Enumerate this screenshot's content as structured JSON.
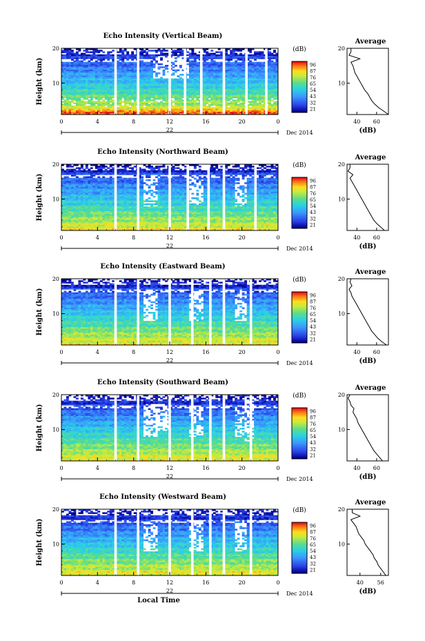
{
  "figure": {
    "xlabel": "Local Time",
    "date_label": "Dec 2014",
    "day_label": "22",
    "x_ticks": [
      "0",
      "4",
      "8",
      "12",
      "16",
      "20",
      "0"
    ],
    "y_label": "Height (km)",
    "y_ticks": [
      "20",
      "10"
    ],
    "colorbar_unit": "(dB)",
    "colorbar_ticks": [
      "96",
      "87",
      "76",
      "65",
      "54",
      "43",
      "32",
      "21"
    ],
    "avg_title": "Average",
    "avg_xlabel": "(dB)",
    "avg_x_ticks": [
      "40",
      "60"
    ],
    "avg_y_ticks": [
      "20",
      "10"
    ]
  },
  "chart_data": [
    {
      "type": "heatmap",
      "title": "Echo Intensity (Vertical Beam)",
      "xlabel": "Local Time",
      "ylabel": "Height (km)",
      "xlim": [
        0,
        24
      ],
      "ylim": [
        1,
        20
      ],
      "colorbar": {
        "label": "(dB)",
        "ticks": [
          96,
          87,
          76,
          65,
          54,
          43,
          32,
          21
        ]
      },
      "data_gaps_hours": [
        6,
        8.5,
        12,
        13.7,
        15.5,
        18,
        20.5,
        22.7
      ],
      "average_profile": {
        "title": "Average",
        "xlabel": "(dB)",
        "x_ticks": [
          40,
          60
        ],
        "xlim": [
          30,
          72
        ],
        "height": [
          1,
          2,
          3,
          4,
          5,
          6,
          7,
          8,
          9,
          10,
          11,
          12,
          13,
          14,
          15,
          16,
          17,
          18,
          19,
          20
        ],
        "db": [
          72,
          67,
          62,
          58,
          55,
          53,
          51,
          48,
          46,
          44,
          42,
          40,
          38,
          37,
          36,
          34,
          43,
          32,
          34,
          34
        ]
      }
    },
    {
      "type": "heatmap",
      "title": "Echo Intensity (Northward Beam)",
      "xlabel": "Local Time",
      "ylabel": "Height (km)",
      "xlim": [
        0,
        24
      ],
      "ylim": [
        1,
        20
      ],
      "colorbar": {
        "label": "(dB)",
        "ticks": [
          96,
          87,
          76,
          65,
          54,
          43,
          32,
          21
        ]
      },
      "data_gaps_hours": [
        6,
        8.5,
        12,
        14,
        16.3,
        18,
        21.5
      ],
      "average_profile": {
        "title": "Average",
        "xlabel": "(dB)",
        "x_ticks": [
          40,
          60
        ],
        "xlim": [
          30,
          72
        ],
        "height": [
          1,
          2,
          3,
          4,
          5,
          6,
          7,
          8,
          9,
          10,
          11,
          12,
          13,
          14,
          15,
          16,
          17,
          18,
          19,
          20
        ],
        "db": [
          68,
          64,
          60,
          57,
          55,
          53,
          51,
          49,
          47,
          45,
          43,
          41,
          39,
          37,
          35,
          33,
          36,
          31,
          33,
          33
        ]
      }
    },
    {
      "type": "heatmap",
      "title": "Echo Intensity (Eastward Beam)",
      "xlabel": "Local Time",
      "ylabel": "Height (km)",
      "xlim": [
        0,
        24
      ],
      "ylim": [
        1,
        20
      ],
      "colorbar": {
        "label": "(dB)",
        "ticks": [
          96,
          87,
          76,
          65,
          54,
          43,
          32,
          21
        ]
      },
      "data_gaps_hours": [
        6,
        8.5,
        12,
        14.5,
        16.5,
        18,
        21
      ],
      "average_profile": {
        "title": "Average",
        "xlabel": "(dB)",
        "x_ticks": [
          40,
          60
        ],
        "xlim": [
          30,
          72
        ],
        "height": [
          1,
          2,
          3,
          4,
          5,
          6,
          7,
          8,
          9,
          10,
          11,
          12,
          13,
          14,
          15,
          16,
          17,
          18,
          19,
          20
        ],
        "db": [
          70,
          65,
          61,
          58,
          55,
          53,
          51,
          49,
          47,
          45,
          43,
          41,
          39,
          37,
          35,
          34,
          32,
          35,
          33,
          34
        ]
      }
    },
    {
      "type": "heatmap",
      "title": "Echo Intensity (Southward Beam)",
      "xlabel": "Local Time",
      "ylabel": "Height (km)",
      "xlim": [
        0,
        24
      ],
      "ylim": [
        1,
        20
      ],
      "colorbar": {
        "label": "(dB)",
        "ticks": [
          96,
          87,
          76,
          65,
          54,
          43,
          32,
          21
        ]
      },
      "data_gaps_hours": [
        6,
        8.5,
        12,
        14.5,
        16.5,
        18,
        21
      ],
      "average_profile": {
        "title": "Average",
        "xlabel": "(dB)",
        "x_ticks": [
          40,
          60
        ],
        "xlim": [
          30,
          72
        ],
        "height": [
          1,
          2,
          3,
          4,
          5,
          6,
          7,
          8,
          9,
          10,
          11,
          12,
          13,
          14,
          15,
          16,
          17,
          18,
          19,
          20
        ],
        "db": [
          66,
          63,
          60,
          57,
          55,
          53,
          51,
          49,
          47,
          45,
          43,
          41,
          40,
          38,
          36,
          37,
          34,
          33,
          31,
          33
        ]
      }
    },
    {
      "type": "heatmap",
      "title": "Echo Intensity (Westward Beam)",
      "xlabel": "Local Time",
      "ylabel": "Height (km)",
      "xlim": [
        0,
        24
      ],
      "ylim": [
        1,
        20
      ],
      "colorbar": {
        "label": "(dB)",
        "ticks": [
          96,
          87,
          76,
          65,
          54,
          43,
          32,
          21
        ]
      },
      "data_gaps_hours": [
        6,
        8.5,
        12,
        14.5,
        16.5,
        18,
        21
      ],
      "average_profile": {
        "title": "Average",
        "xlabel": "(dB)",
        "x_ticks": [
          40,
          56
        ],
        "xlim": [
          30,
          62
        ],
        "height": [
          1,
          2,
          3,
          4,
          5,
          6,
          7,
          8,
          9,
          10,
          11,
          12,
          13,
          14,
          15,
          16,
          17,
          18,
          19,
          20
        ],
        "db": [
          60,
          58,
          56,
          54,
          53,
          51,
          50,
          48,
          46,
          44,
          43,
          41,
          39,
          38,
          37,
          35,
          33,
          40,
          34,
          34
        ]
      }
    }
  ]
}
